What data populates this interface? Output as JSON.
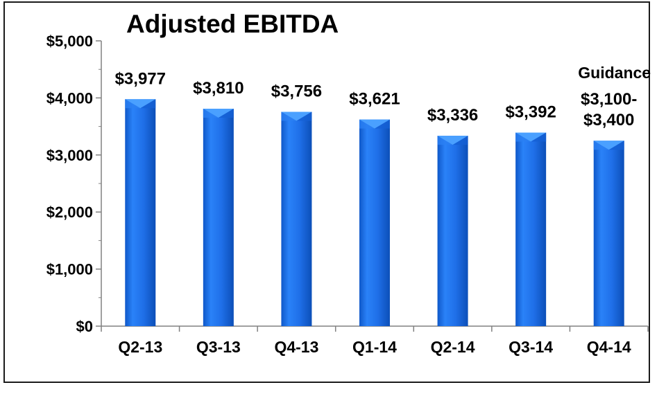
{
  "chart_data": {
    "type": "bar",
    "title": "Adjusted EBITDA",
    "xlabel": "",
    "ylabel": "",
    "categories": [
      "Q2-13",
      "Q3-13",
      "Q4-13",
      "Q1-14",
      "Q2-14",
      "Q3-14",
      "Q4-14"
    ],
    "values": [
      3977,
      3810,
      3756,
      3621,
      3336,
      3392,
      3250
    ],
    "data_labels": [
      "$3,977",
      "$3,810",
      "$3,756",
      "$3,621",
      "$3,336",
      "$3,392",
      "$3,100-\n$3,400"
    ],
    "ylim": [
      0,
      5000
    ],
    "yticks": [
      0,
      1000,
      2000,
      3000,
      4000,
      5000
    ],
    "ytick_labels": [
      "$0",
      "$1,000",
      "$2,000",
      "$3,000",
      "$4,000",
      "$5,000"
    ],
    "annotations": [
      {
        "text": "Guidance",
        "category": "Q4-14"
      }
    ],
    "bar_color": "#1f6fe8",
    "grid": false,
    "legend": "none"
  }
}
